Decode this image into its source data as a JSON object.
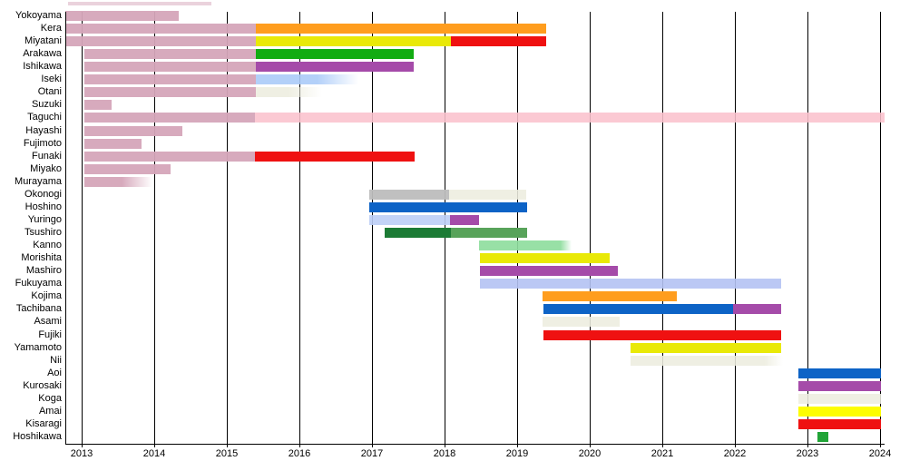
{
  "chart_data": {
    "type": "gantt",
    "title": "",
    "xlabel": "",
    "ylabel": "",
    "x_axis": {
      "tick_labels": [
        "2013",
        "2014",
        "2015",
        "2016",
        "2017",
        "2018",
        "2019",
        "2020",
        "2021",
        "2022",
        "2023",
        "2024"
      ],
      "tick_years": [
        2013,
        2014,
        2015,
        2016,
        2017,
        2018,
        2019,
        2020,
        2021,
        2022,
        2023,
        2024
      ],
      "range": [
        2012.775,
        2024.06
      ],
      "grid": "on"
    },
    "palette": {
      "dusty_pink": {
        "hex": "#D5A5B9",
        "alpha": 0.95
      },
      "light_pink": {
        "hex": "#FBC2CD",
        "alpha": 0.88
      },
      "orange": {
        "hex": "#FF9D1E",
        "alpha": 1
      },
      "yellow": {
        "hex": "#E9E907",
        "alpha": 1
      },
      "bright_yellow": {
        "hex": "#FDFD00",
        "alpha": 1
      },
      "red": {
        "hex": "#EF1111",
        "alpha": 1
      },
      "green": {
        "hex": "#12AC12",
        "alpha": 1
      },
      "small_green": {
        "hex": "#21A437",
        "alpha": 1
      },
      "purple": {
        "hex": "#A54BA9",
        "alpha": 1
      },
      "blue": {
        "hex": "#0D63C6",
        "alpha": 1
      },
      "dark_green": {
        "hex": "#1C7B35",
        "alpha": 1
      },
      "medium_green": {
        "hex": "#58A35A",
        "alpha": 1
      },
      "light_green": {
        "hex": "#8FDD9E",
        "alpha": 0.92
      },
      "light_blue": {
        "hex": "#ABCBF8",
        "alpha": 0.9
      },
      "lavender": {
        "hex": "#BDCEF6",
        "alpha": 0.9
      },
      "periwinkle": {
        "hex": "#B4C2F3",
        "alpha": 0.9
      },
      "beige": {
        "hex": "#EDEDDF",
        "alpha": 0.88
      },
      "gray": {
        "hex": "#BDBDBD",
        "alpha": 0.95
      }
    },
    "top_clipped_bar": {
      "start": 2012.81,
      "end": 2014.79,
      "color": "dusty_pink"
    },
    "rows": [
      {
        "name": "Yokoyama",
        "bars": [
          {
            "start": 2012.775,
            "end": 2014.34,
            "color": "dusty_pink"
          }
        ]
      },
      {
        "name": "Kera",
        "bars": [
          {
            "start": 2012.775,
            "end": 2015.4,
            "color": "dusty_pink"
          },
          {
            "start": 2015.4,
            "end": 2019.4,
            "color": "orange"
          }
        ]
      },
      {
        "name": "Miyatani",
        "bars": [
          {
            "start": 2012.775,
            "end": 2015.4,
            "color": "dusty_pink"
          },
          {
            "start": 2015.4,
            "end": 2018.09,
            "color": "yellow"
          },
          {
            "start": 2018.09,
            "end": 2019.4,
            "color": "red"
          }
        ]
      },
      {
        "name": "Arakawa",
        "bars": [
          {
            "start": 2013.04,
            "end": 2015.4,
            "color": "dusty_pink"
          },
          {
            "start": 2015.4,
            "end": 2017.58,
            "color": "green"
          }
        ]
      },
      {
        "name": "Ishikawa",
        "bars": [
          {
            "start": 2013.04,
            "end": 2015.4,
            "color": "dusty_pink"
          },
          {
            "start": 2015.4,
            "end": 2017.58,
            "color": "purple"
          }
        ]
      },
      {
        "name": "Iseki",
        "bars": [
          {
            "start": 2013.04,
            "end": 2015.4,
            "color": "dusty_pink"
          },
          {
            "start": 2015.4,
            "end": 2016.81,
            "color": "light_blue",
            "fade_from": 60
          }
        ]
      },
      {
        "name": "Otani",
        "bars": [
          {
            "start": 2013.04,
            "end": 2015.4,
            "color": "dusty_pink"
          },
          {
            "start": 2015.4,
            "end": 2016.31,
            "color": "beige",
            "fade_from": 50
          }
        ]
      },
      {
        "name": "Suzuki",
        "bars": [
          {
            "start": 2013.04,
            "end": 2013.41,
            "color": "dusty_pink"
          }
        ]
      },
      {
        "name": "Taguchi",
        "bars": [
          {
            "start": 2013.04,
            "end": 2015.39,
            "color": "dusty_pink"
          },
          {
            "start": 2015.39,
            "end": 2024.06,
            "color": "light_pink"
          }
        ]
      },
      {
        "name": "Hayashi",
        "bars": [
          {
            "start": 2013.04,
            "end": 2014.39,
            "color": "dusty_pink"
          }
        ]
      },
      {
        "name": "Fujimoto",
        "bars": [
          {
            "start": 2013.04,
            "end": 2013.83,
            "color": "dusty_pink"
          }
        ]
      },
      {
        "name": "Funaki",
        "bars": [
          {
            "start": 2013.04,
            "end": 2015.39,
            "color": "dusty_pink"
          },
          {
            "start": 2015.39,
            "end": 2017.59,
            "color": "red"
          }
        ]
      },
      {
        "name": "Miyako",
        "bars": [
          {
            "start": 2013.04,
            "end": 2014.23,
            "color": "dusty_pink"
          }
        ]
      },
      {
        "name": "Murayama",
        "bars": [
          {
            "start": 2013.04,
            "end": 2013.98,
            "color": "dusty_pink",
            "fade_from": 55
          }
        ]
      },
      {
        "name": "Okonogi",
        "bars": [
          {
            "start": 2016.96,
            "end": 2018.06,
            "color": "gray"
          },
          {
            "start": 2018.06,
            "end": 2019.13,
            "color": "beige"
          }
        ]
      },
      {
        "name": "Hoshino",
        "bars": [
          {
            "start": 2016.96,
            "end": 2019.14,
            "color": "blue"
          }
        ]
      },
      {
        "name": "Yuringo",
        "bars": [
          {
            "start": 2016.96,
            "end": 2018.08,
            "color": "lavender"
          },
          {
            "start": 2018.08,
            "end": 2018.48,
            "color": "purple"
          }
        ]
      },
      {
        "name": "Tsushiro",
        "bars": [
          {
            "start": 2017.18,
            "end": 2018.09,
            "color": "dark_green"
          },
          {
            "start": 2018.09,
            "end": 2019.14,
            "color": "medium_green"
          }
        ]
      },
      {
        "name": "Kanno",
        "bars": [
          {
            "start": 2018.48,
            "end": 2019.75,
            "color": "light_green",
            "fade_from": 88
          }
        ]
      },
      {
        "name": "Morishita",
        "bars": [
          {
            "start": 2018.49,
            "end": 2020.28,
            "color": "yellow"
          }
        ]
      },
      {
        "name": "Mashiro",
        "bars": [
          {
            "start": 2018.49,
            "end": 2020.39,
            "color": "purple"
          }
        ]
      },
      {
        "name": "Fukuyama",
        "bars": [
          {
            "start": 2018.49,
            "end": 2022.64,
            "color": "periwinkle"
          }
        ]
      },
      {
        "name": "Kojima",
        "bars": [
          {
            "start": 2019.35,
            "end": 2021.2,
            "color": "orange"
          }
        ]
      },
      {
        "name": "Tachibana",
        "bars": [
          {
            "start": 2019.36,
            "end": 2021.98,
            "color": "blue"
          },
          {
            "start": 2021.98,
            "end": 2022.64,
            "color": "purple"
          }
        ]
      },
      {
        "name": "Asami",
        "bars": [
          {
            "start": 2019.35,
            "end": 2020.41,
            "color": "beige"
          }
        ]
      },
      {
        "name": "Fujiki",
        "bars": [
          {
            "start": 2019.36,
            "end": 2022.64,
            "color": "red"
          }
        ]
      },
      {
        "name": "Yamamoto",
        "bars": [
          {
            "start": 2020.56,
            "end": 2022.64,
            "color": "yellow"
          }
        ]
      },
      {
        "name": "Nii",
        "bars": [
          {
            "start": 2020.56,
            "end": 2022.66,
            "color": "beige",
            "fade_from": 88
          }
        ]
      },
      {
        "name": "Aoi",
        "bars": [
          {
            "start": 2022.88,
            "end": 2024.01,
            "color": "blue"
          }
        ]
      },
      {
        "name": "Kurosaki",
        "bars": [
          {
            "start": 2022.88,
            "end": 2024.01,
            "color": "purple"
          }
        ]
      },
      {
        "name": "Koga",
        "bars": [
          {
            "start": 2022.88,
            "end": 2024.01,
            "color": "beige"
          }
        ]
      },
      {
        "name": "Amai",
        "bars": [
          {
            "start": 2022.88,
            "end": 2024.01,
            "color": "bright_yellow"
          }
        ]
      },
      {
        "name": "Kisaragi",
        "bars": [
          {
            "start": 2022.88,
            "end": 2024.01,
            "color": "red"
          }
        ]
      },
      {
        "name": "Hoshikawa",
        "bars": [
          {
            "start": 2023.14,
            "end": 2023.29,
            "color": "small_green"
          }
        ]
      }
    ]
  }
}
